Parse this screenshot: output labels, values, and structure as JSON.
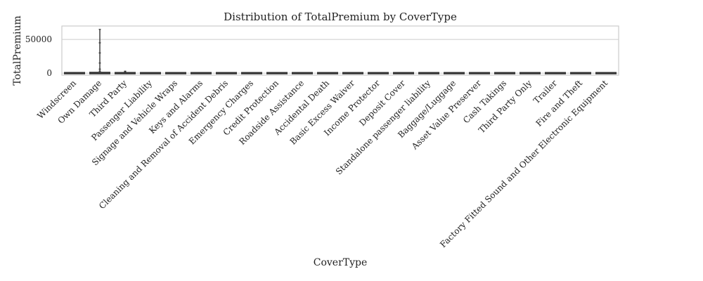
{
  "chart_data": {
    "type": "box",
    "title": "Distribution of TotalPremium by CoverType",
    "xlabel": "CoverType",
    "ylabel": "TotalPremium",
    "ylim": [
      -3000,
      70000
    ],
    "yticks": [
      0,
      50000
    ],
    "ytick_labels": [
      "0",
      "50000"
    ],
    "grid": true,
    "categories": [
      "Windscreen",
      "Own Damage",
      "Third Party",
      "Passenger Liability",
      "Signage and Vehicle Wraps",
      "Keys and Alarms",
      "Cleaning and Removal of Accident Debris",
      "Emergency Charges",
      "Credit Protection",
      "Roadside Assistance",
      "Accidental Death",
      "Basic Excess Waiver",
      "Income Protector",
      "Deposit Cover",
      "Standalone passenger liability",
      "Baggage/Luggage",
      "Asset Value Preserver",
      "Cash Takings",
      "Third Party Only",
      "Trailer",
      "Fire and Theft",
      "Factory Fitted Sound and Other Electronic Equipment"
    ],
    "boxes": [
      {
        "category": "Windscreen",
        "whisker_low": 0,
        "q1": 0,
        "median": 0,
        "q3": 50,
        "whisker_high": 300,
        "outliers": [
          400,
          600,
          800,
          1000
        ]
      },
      {
        "category": "Own Damage",
        "whisker_low": 0,
        "q1": 0,
        "median": 0,
        "q3": 300,
        "whisker_high": 2500,
        "outliers": [
          3000,
          6000,
          15000,
          30000,
          45000,
          65000
        ]
      },
      {
        "category": "Third Party",
        "whisker_low": 0,
        "q1": 0,
        "median": 0,
        "q3": 50,
        "whisker_high": 500,
        "outliers": [
          800,
          1500,
          2500,
          3000
        ]
      },
      {
        "category": "Passenger Liability",
        "whisker_low": 0,
        "q1": 0,
        "median": 0,
        "q3": 0,
        "whisker_high": 0,
        "outliers": [
          5,
          10,
          20
        ]
      },
      {
        "category": "Signage and Vehicle Wraps",
        "whisker_low": 0,
        "q1": 0,
        "median": 0,
        "q3": 0,
        "whisker_high": 0,
        "outliers": [
          5,
          10
        ]
      },
      {
        "category": "Keys and Alarms",
        "whisker_low": 0,
        "q1": 0,
        "median": 0,
        "q3": 0,
        "whisker_high": 0,
        "outliers": [
          5,
          10
        ]
      },
      {
        "category": "Cleaning and Removal of Accident Debris",
        "whisker_low": 0,
        "q1": 0,
        "median": 0,
        "q3": 0,
        "whisker_high": 0,
        "outliers": [
          10,
          20
        ]
      },
      {
        "category": "Emergency Charges",
        "whisker_low": 0,
        "q1": 0,
        "median": 0,
        "q3": 0,
        "whisker_high": 0,
        "outliers": [
          5,
          10
        ]
      },
      {
        "category": "Credit Protection",
        "whisker_low": 0,
        "q1": 0,
        "median": 0,
        "q3": 0,
        "whisker_high": 0,
        "outliers": [
          20,
          50
        ]
      },
      {
        "category": "Roadside Assistance",
        "whisker_low": 0,
        "q1": 0,
        "median": 0,
        "q3": 0,
        "whisker_high": 0,
        "outliers": [
          5,
          10
        ]
      },
      {
        "category": "Accidental Death",
        "whisker_low": 0,
        "q1": 0,
        "median": 0,
        "q3": 0,
        "whisker_high": 0,
        "outliers": [
          5,
          10
        ]
      },
      {
        "category": "Basic Excess Waiver",
        "whisker_low": 0,
        "q1": 0,
        "median": 0,
        "q3": 0,
        "whisker_high": 0,
        "outliers": [
          20,
          40
        ]
      },
      {
        "category": "Income Protector",
        "whisker_low": 0,
        "q1": 0,
        "median": 0,
        "q3": 0,
        "whisker_high": 0,
        "outliers": [
          10,
          30
        ]
      },
      {
        "category": "Deposit Cover",
        "whisker_low": 0,
        "q1": 0,
        "median": 0,
        "q3": 0,
        "whisker_high": 0,
        "outliers": [
          10,
          30
        ]
      },
      {
        "category": "Standalone passenger liability",
        "whisker_low": 0,
        "q1": 0,
        "median": 0,
        "q3": 0,
        "whisker_high": 0,
        "outliers": [
          5,
          10
        ]
      },
      {
        "category": "Baggage/Luggage",
        "whisker_low": 0,
        "q1": 0,
        "median": 0,
        "q3": 0,
        "whisker_high": 0,
        "outliers": [
          5,
          10
        ]
      },
      {
        "category": "Asset Value Preserver",
        "whisker_low": 0,
        "q1": 0,
        "median": 0,
        "q3": 0,
        "whisker_high": 0,
        "outliers": [
          10,
          20
        ]
      },
      {
        "category": "Cash Takings",
        "whisker_low": 0,
        "q1": 0,
        "median": 0,
        "q3": 0,
        "whisker_high": 0,
        "outliers": [
          5,
          10
        ]
      },
      {
        "category": "Third Party Only",
        "whisker_low": 0,
        "q1": 0,
        "median": 0,
        "q3": 0,
        "whisker_high": 0,
        "outliers": [
          10,
          30
        ]
      },
      {
        "category": "Trailer",
        "whisker_low": 0,
        "q1": 0,
        "median": 0,
        "q3": 0,
        "whisker_high": 0,
        "outliers": [
          5,
          10
        ]
      },
      {
        "category": "Fire and Theft",
        "whisker_low": 0,
        "q1": 0,
        "median": 0,
        "q3": 0,
        "whisker_high": 0,
        "outliers": [
          10,
          30
        ]
      },
      {
        "category": "Factory Fitted Sound and Other Electronic Equipment",
        "whisker_low": 0,
        "q1": 0,
        "median": 0,
        "q3": 0,
        "whisker_high": 0,
        "outliers": []
      }
    ]
  }
}
